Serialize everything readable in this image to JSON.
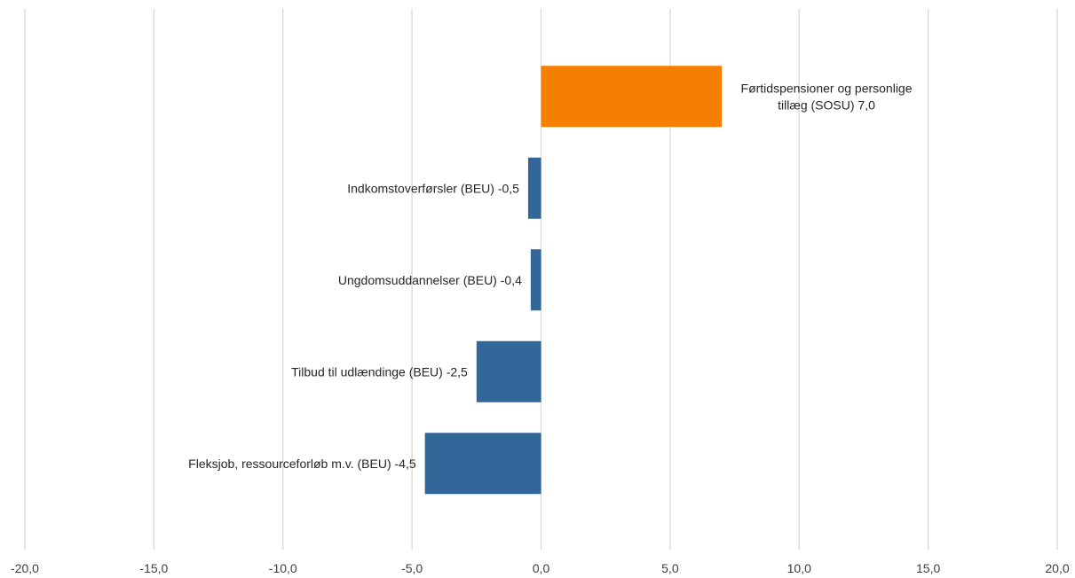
{
  "chart_data": {
    "type": "bar",
    "orientation": "horizontal",
    "xlim": [
      -20,
      20
    ],
    "x_ticks": [
      -20,
      -15,
      -10,
      -5,
      0,
      5,
      10,
      15,
      20
    ],
    "x_tick_labels": [
      "-20,0",
      "-15,0",
      "-10,0",
      "-5,0",
      "0,0",
      "5,0",
      "10,0",
      "15,0",
      "20,0"
    ],
    "grid": "vertical",
    "bars": [
      {
        "label_lines": [
          "Førtidspensioner og personlige",
          "tillæg (SOSU) 7,0"
        ],
        "value": 7.0,
        "color": "#f57f00"
      },
      {
        "label_lines": [
          "Indkomstoverførsler (BEU) -0,5"
        ],
        "value": -0.5,
        "color": "#336699"
      },
      {
        "label_lines": [
          "Ungdomsuddannelser (BEU) -0,4"
        ],
        "value": -0.4,
        "color": "#336699"
      },
      {
        "label_lines": [
          "Tilbud til udlændinge (BEU) -2,5"
        ],
        "value": -2.5,
        "color": "#336699"
      },
      {
        "label_lines": [
          "Fleksjob, ressourceforløb m.v. (BEU) -4,5"
        ],
        "value": -4.5,
        "color": "#336699"
      }
    ]
  }
}
